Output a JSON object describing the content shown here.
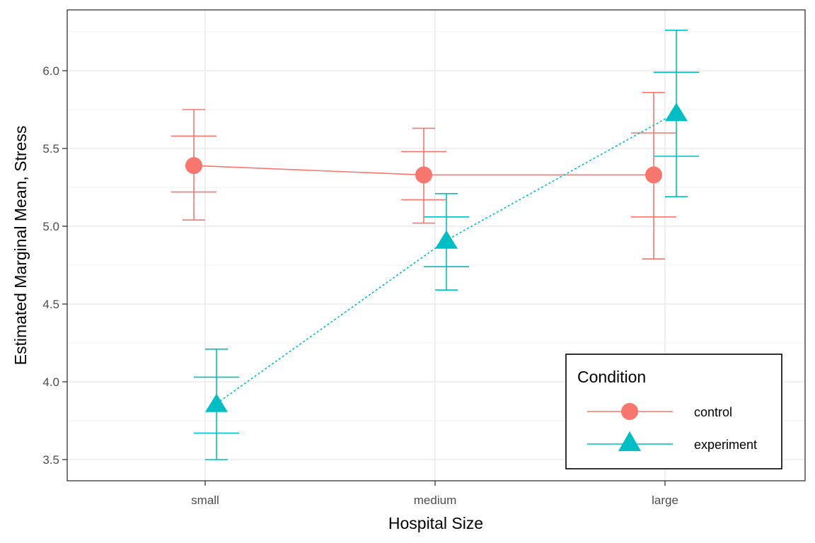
{
  "chart_data": {
    "type": "line",
    "title": "",
    "xlabel": "Hospital Size",
    "ylabel": "Estimated Marginal Mean, Stress",
    "categories": [
      "small",
      "medium",
      "large"
    ],
    "ylim": [
      3.35,
      6.38
    ],
    "yticks": [
      3.5,
      4.0,
      4.5,
      5.0,
      5.5,
      6.0
    ],
    "ytick_labels": [
      "3.5",
      "4.0",
      "4.5",
      "5.0",
      "5.5",
      "6.0"
    ],
    "grid": true,
    "legend": {
      "title": "Condition",
      "placement": "bottom-right",
      "entries": [
        "control",
        "experiment"
      ]
    },
    "series": [
      {
        "name": "control",
        "color": "#F8766D",
        "marker": "circle",
        "linestyle": "solid",
        "values": [
          5.39,
          5.33,
          5.33
        ],
        "ci_outer_low": [
          5.04,
          5.02,
          4.79
        ],
        "ci_outer_high": [
          5.75,
          5.63,
          5.86
        ],
        "ci_inner_low": [
          5.22,
          5.17,
          5.06
        ],
        "ci_inner_high": [
          5.58,
          5.48,
          5.6
        ]
      },
      {
        "name": "experiment",
        "color": "#00BFC4",
        "marker": "triangle",
        "linestyle": "dotted",
        "values": [
          3.86,
          4.91,
          5.73
        ],
        "ci_outer_low": [
          3.5,
          4.59,
          5.19
        ],
        "ci_outer_high": [
          4.21,
          5.21,
          6.26
        ],
        "ci_inner_low": [
          3.67,
          4.74,
          5.45
        ],
        "ci_inner_high": [
          4.03,
          5.06,
          5.99
        ]
      }
    ]
  }
}
